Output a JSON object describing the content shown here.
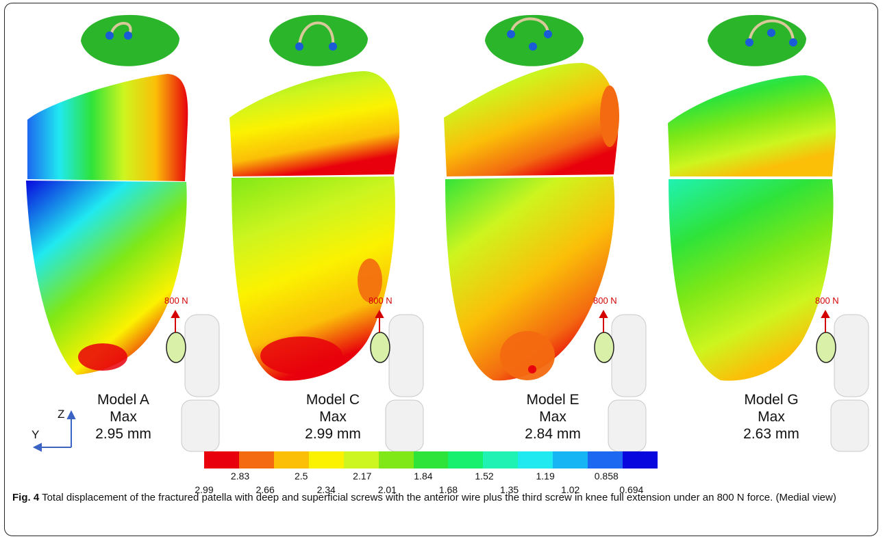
{
  "figure": {
    "panels": [
      {
        "model": "Model A",
        "max_label": "Max",
        "max_value": "2.95 mm",
        "force": "800 N"
      },
      {
        "model": "Model C",
        "max_label": "Max",
        "max_value": "2.99 mm",
        "force": "800 N"
      },
      {
        "model": "Model E",
        "max_label": "Max",
        "max_value": "2.84 mm",
        "force": "800 N"
      },
      {
        "model": "Model G",
        "max_label": "Max",
        "max_value": "2.63 mm",
        "force": "800 N"
      }
    ],
    "axes": {
      "z": "Z",
      "y": "Y"
    },
    "scale": {
      "colors": [
        "#e8000c",
        "#f36a10",
        "#fbbf08",
        "#fbf201",
        "#cdf51f",
        "#7fe816",
        "#2ee33a",
        "#17ef6e",
        "#1ff2b3",
        "#20e9f0",
        "#18b5f5",
        "#1c68f0",
        "#0808de"
      ],
      "upper_ticks": [
        "2.83",
        "2.5",
        "2.17",
        "1.84",
        "1.52",
        "1.19",
        "0.858"
      ],
      "lower_ticks": [
        "2.99",
        "2.66",
        "2.34",
        "2.01",
        "1.68",
        "1.35",
        "1.02",
        "0.694"
      ]
    },
    "caption": {
      "label": "Fig. 4",
      "text": " Total displacement of the fractured patella with deep and superficial screws with the anterior wire plus the third screw in knee full extension under an 800 N force. (Medial view)"
    }
  }
}
